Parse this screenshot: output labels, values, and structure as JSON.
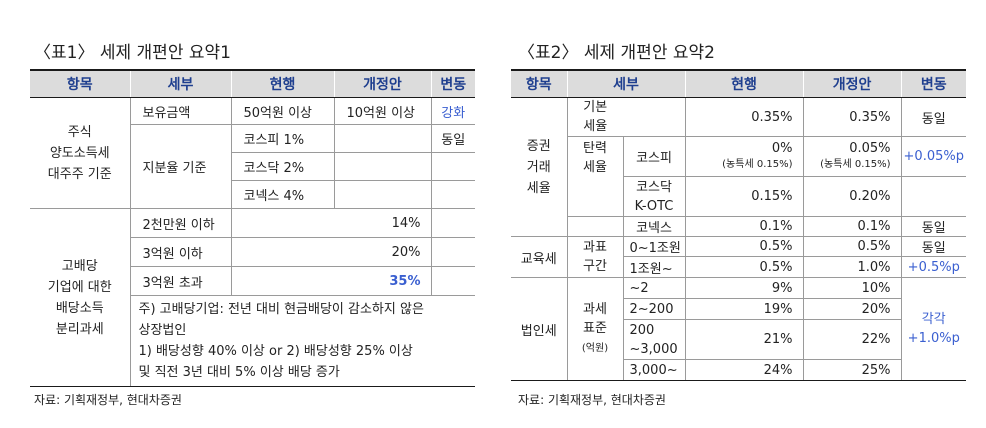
{
  "table1": {
    "title": "〈표1〉 세제 개편안 요약1",
    "headers": [
      "항목",
      "세부",
      "현행",
      "개정안",
      "변동"
    ],
    "section1": {
      "label": [
        "주식",
        "양도소득세",
        "대주주 기준"
      ],
      "row1": {
        "detail": "보유금액",
        "current": "50억원 이상",
        "revised": "10억원 이상",
        "change": "강화"
      },
      "threshold_label": "지분율 기준",
      "row2": {
        "sub": "코스피 1%",
        "change": "동일"
      },
      "row3": {
        "sub": "코스닥 2%"
      },
      "row4": {
        "sub": "코넥스 4%"
      }
    },
    "section2": {
      "label": [
        "고배당",
        "기업에 대한",
        "배당소득",
        "분리과세"
      ],
      "rows": [
        {
          "detail": "2천만원 이하",
          "rate": "14%"
        },
        {
          "detail": "3억원 이하",
          "rate": "20%"
        },
        {
          "detail": "3억원 초과",
          "rate": "35%"
        }
      ],
      "note": [
        "주) 고배당기업: 전년 대비 현금배당이 감소하지 않은",
        "상장법인",
        "1) 배당성향 40% 이상 or 2) 배당성향 25% 이상",
        "및 직전 3년 대비 5% 이상 배당 증가"
      ]
    },
    "source": "자료: 기획재정부, 현대차증권"
  },
  "table2": {
    "title": "〈표2〉 세제 개편안 요약2",
    "headers": [
      "항목",
      "세부",
      "현행",
      "개정안",
      "변동"
    ],
    "securities": {
      "label": [
        "증권",
        "거래",
        "세율"
      ],
      "basic": {
        "label": [
          "기본",
          "세율"
        ],
        "current": "0.35%",
        "revised": "0.35%",
        "change": "동일"
      },
      "flexible_label": [
        "탄력",
        "세율"
      ],
      "kospi": {
        "market": "코스피",
        "current": "0%",
        "current_note": "(농특세 0.15%)",
        "revised": "0.05%",
        "revised_note": "(농특세 0.15%)",
        "change": "+0.05%p"
      },
      "kosdaq": {
        "market": [
          "코스닥",
          "K-OTC"
        ],
        "current": "0.15%",
        "revised": "0.20%"
      },
      "konex": {
        "market": "코넥스",
        "current": "0.1%",
        "revised": "0.1%",
        "change": "동일"
      }
    },
    "education": {
      "label": "교육세",
      "base_label": [
        "과표",
        "구간"
      ],
      "rows": [
        {
          "bracket": "0~1조원",
          "current": "0.5%",
          "revised": "0.5%",
          "change": "동일"
        },
        {
          "bracket": "1조원~",
          "current": "0.5%",
          "revised": "1.0%",
          "change": "+0.5%p"
        }
      ]
    },
    "corporate": {
      "label": "법인세",
      "base_label": [
        "과세",
        "표준"
      ],
      "unit": "(억원)",
      "rows": [
        {
          "bracket": "~2",
          "current": "9%",
          "revised": "10%"
        },
        {
          "bracket": "2~200",
          "current": "19%",
          "revised": "20%"
        },
        {
          "bracket": [
            "200",
            "~3,000"
          ],
          "current": "21%",
          "revised": "22%"
        },
        {
          "bracket": "3,000~",
          "current": "24%",
          "revised": "25%"
        }
      ],
      "change": [
        "각각",
        "+1.0%p"
      ]
    },
    "source": "자료: 기획재정부, 현대차증권"
  },
  "colors": {
    "header_bg": "#dcdcdc",
    "header_text": "#1f3f8f",
    "accent_blue": "#3a5fd0"
  }
}
